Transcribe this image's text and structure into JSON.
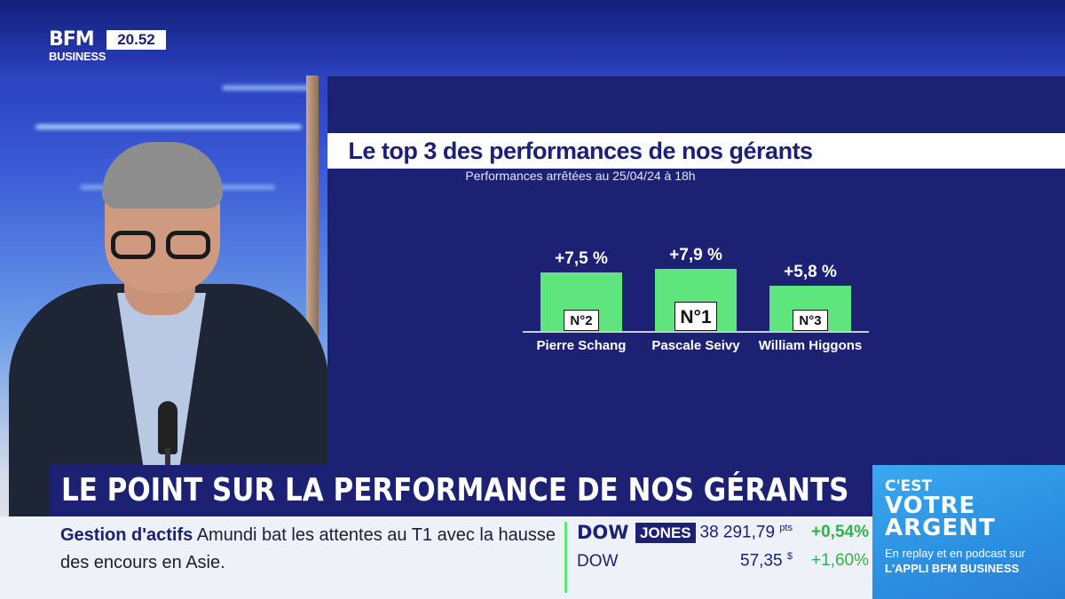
{
  "channel": {
    "logo_line1": "BFM",
    "logo_line2": "BUSINESS",
    "clock": "20.52"
  },
  "graphic": {
    "title": "Le top 3 des performances de nos gérants",
    "subtitle": "Performances arrêtées au 25/04/24 à 18h"
  },
  "chart_data": {
    "type": "bar",
    "title": "Le top 3 des performances de nos gérants",
    "subtitle": "Performances arrêtées au 25/04/24 à 18h",
    "categories": [
      "Pierre Schang",
      "Pascale Seivy",
      "William Higgons"
    ],
    "values": [
      7.5,
      7.9,
      5.8
    ],
    "value_labels": [
      "+7,5 %",
      "+7,9 %",
      "+5,8 %"
    ],
    "ranks": [
      "N°2",
      "N°1",
      "N°3"
    ],
    "xlabel": "",
    "ylabel": "",
    "unit": "%",
    "ylim": [
      0,
      7.9
    ],
    "bar_color": "#5fe57d"
  },
  "lower_third": {
    "headline": "LE POINT SUR LA PERFORMANCE DE NOS GÉRANTS",
    "news_category": "Gestion d'actifs",
    "news_text": "Amundi bat les attentes au T1 avec la hausse des encours en Asie."
  },
  "market": {
    "rows": [
      {
        "name_a": "DOW",
        "name_b": "JONES",
        "value": "38 291,79",
        "unit": "pts",
        "change": "+0,54%"
      },
      {
        "name": "DOW",
        "value": "57,35",
        "unit": "$",
        "change": "+1,60%"
      }
    ]
  },
  "show": {
    "line1": "C'EST",
    "line2": "VOTRE",
    "line3": "ARGENT",
    "sub1": "En replay et en podcast sur",
    "sub2": "L'APPLI BFM BUSINESS"
  },
  "colors": {
    "navy": "#1c2174",
    "bar_green": "#5fe57d",
    "brand_blue": "#2b8fe0",
    "change_green": "#2db34a"
  }
}
